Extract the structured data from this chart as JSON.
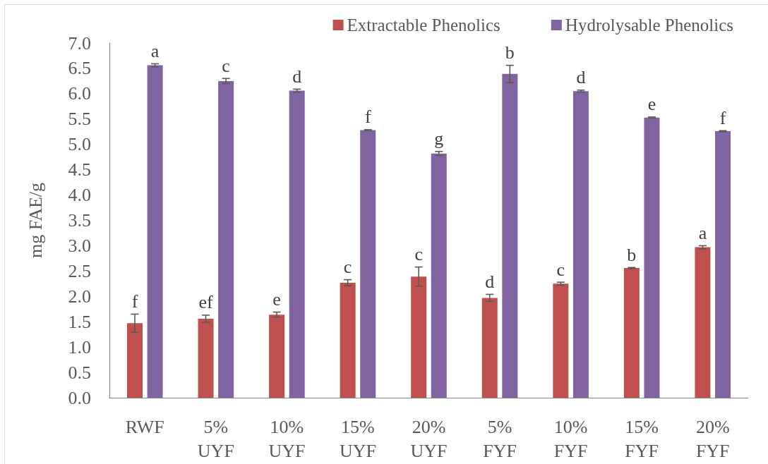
{
  "chart_data": {
    "type": "bar",
    "ylabel": "mg FAE/g",
    "categories": [
      "RWF",
      "5% UYF",
      "10% UYF",
      "15% UYF",
      "20% UYF",
      "5% FYF",
      "10% FYF",
      "15% FYF",
      "20% FYF"
    ],
    "series": [
      {
        "name": "Extractable Phenolics",
        "color": "#c0504d",
        "values": [
          1.47,
          1.56,
          1.64,
          2.27,
          2.39,
          1.97,
          2.25,
          2.56,
          2.97
        ],
        "errors": [
          0.18,
          0.07,
          0.05,
          0.06,
          0.19,
          0.07,
          0.03,
          0.01,
          0.03
        ],
        "value_labels": [
          "f",
          "ef",
          "e",
          "c",
          "c",
          "d",
          "c",
          "b",
          "a"
        ]
      },
      {
        "name": "Hydrolysable Phenolics",
        "color": "#8064a2",
        "values": [
          6.56,
          6.25,
          6.06,
          5.28,
          4.82,
          6.39,
          6.05,
          5.53,
          5.26
        ],
        "errors": [
          0.03,
          0.05,
          0.03,
          0.01,
          0.04,
          0.17,
          0.02,
          0.01,
          0.01
        ],
        "value_labels": [
          "a",
          "c",
          "d",
          "f",
          "g",
          "b",
          "d",
          "e",
          "f"
        ]
      }
    ],
    "ylim": [
      0,
      7
    ],
    "yticks": [
      {
        "value": 0,
        "label": "0.0"
      },
      0.5,
      {
        "value": 1,
        "label": "1.0"
      },
      1.5,
      {
        "value": 2,
        "label": "2.0"
      },
      2.5,
      {
        "value": 3,
        "label": "3.0"
      },
      3.5,
      {
        "value": 4,
        "label": "4.0"
      },
      4.5,
      {
        "value": 5,
        "label": "5.0"
      },
      5.5,
      {
        "value": 6,
        "label": "6.0"
      },
      6.5,
      {
        "value": 7,
        "label": "7.0"
      }
    ],
    "grid": false,
    "legend": "top right"
  }
}
